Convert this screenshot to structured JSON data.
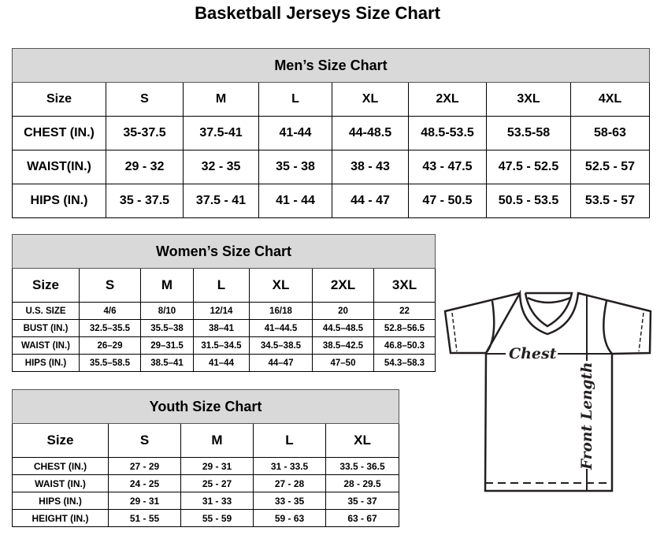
{
  "title": "Basketball Jerseys Size Chart",
  "men": {
    "title": "Men’s Size Chart",
    "header": [
      "Size",
      "S",
      "M",
      "L",
      "XL",
      "2XL",
      "3XL",
      "4XL"
    ],
    "rows": [
      [
        "CHEST (IN.)",
        "35-37.5",
        "37.5-41",
        "41-44",
        "44-48.5",
        "48.5-53.5",
        "53.5-58",
        "58-63"
      ],
      [
        "WAIST(IN.)",
        "29 - 32",
        "32 - 35",
        "35 - 38",
        "38 - 43",
        "43 - 47.5",
        "47.5 - 52.5",
        "52.5 - 57"
      ],
      [
        "HIPS (IN.)",
        "35 - 37.5",
        "37.5 - 41",
        "41 - 44",
        "44 - 47",
        "47 - 50.5",
        "50.5 - 53.5",
        "53.5 - 57"
      ]
    ]
  },
  "women": {
    "title": "Women’s Size Chart",
    "header": [
      "Size",
      "S",
      "M",
      "L",
      "XL",
      "2XL",
      "3XL"
    ],
    "rows": [
      [
        "U.S. SIZE",
        "4/6",
        "8/10",
        "12/14",
        "16/18",
        "20",
        "22"
      ],
      [
        "BUST (IN.)",
        "32.5–35.5",
        "35.5–38",
        "38–41",
        "41–44.5",
        "44.5–48.5",
        "52.8–56.5"
      ],
      [
        "WAIST (IN.)",
        "26–29",
        "29–31.5",
        "31.5–34.5",
        "34.5–38.5",
        "38.5–42.5",
        "46.8–50.3"
      ],
      [
        "HIPS (IN.)",
        "35.5–58.5",
        "38.5–41",
        "41–44",
        "44–47",
        "47–50",
        "54.3–58.3"
      ]
    ]
  },
  "youth": {
    "title": "Youth Size Chart",
    "header": [
      "Size",
      "S",
      "M",
      "L",
      "XL"
    ],
    "rows": [
      [
        "CHEST (IN.)",
        "27 - 29",
        "29 - 31",
        "31 - 33.5",
        "33.5 - 36.5"
      ],
      [
        "WAIST (IN.)",
        "24 - 25",
        "25 - 27",
        "27 - 28",
        "28 - 29.5"
      ],
      [
        "HIPS (IN.)",
        "29 - 31",
        "31 - 33",
        "33 - 35",
        "35 - 37"
      ],
      [
        "HEIGHT (IN.)",
        "51 - 55",
        "55 - 59",
        "59 - 63",
        "63 - 67"
      ]
    ]
  },
  "diagram": {
    "chest_label": "Chest",
    "length_label": "Front Length"
  }
}
